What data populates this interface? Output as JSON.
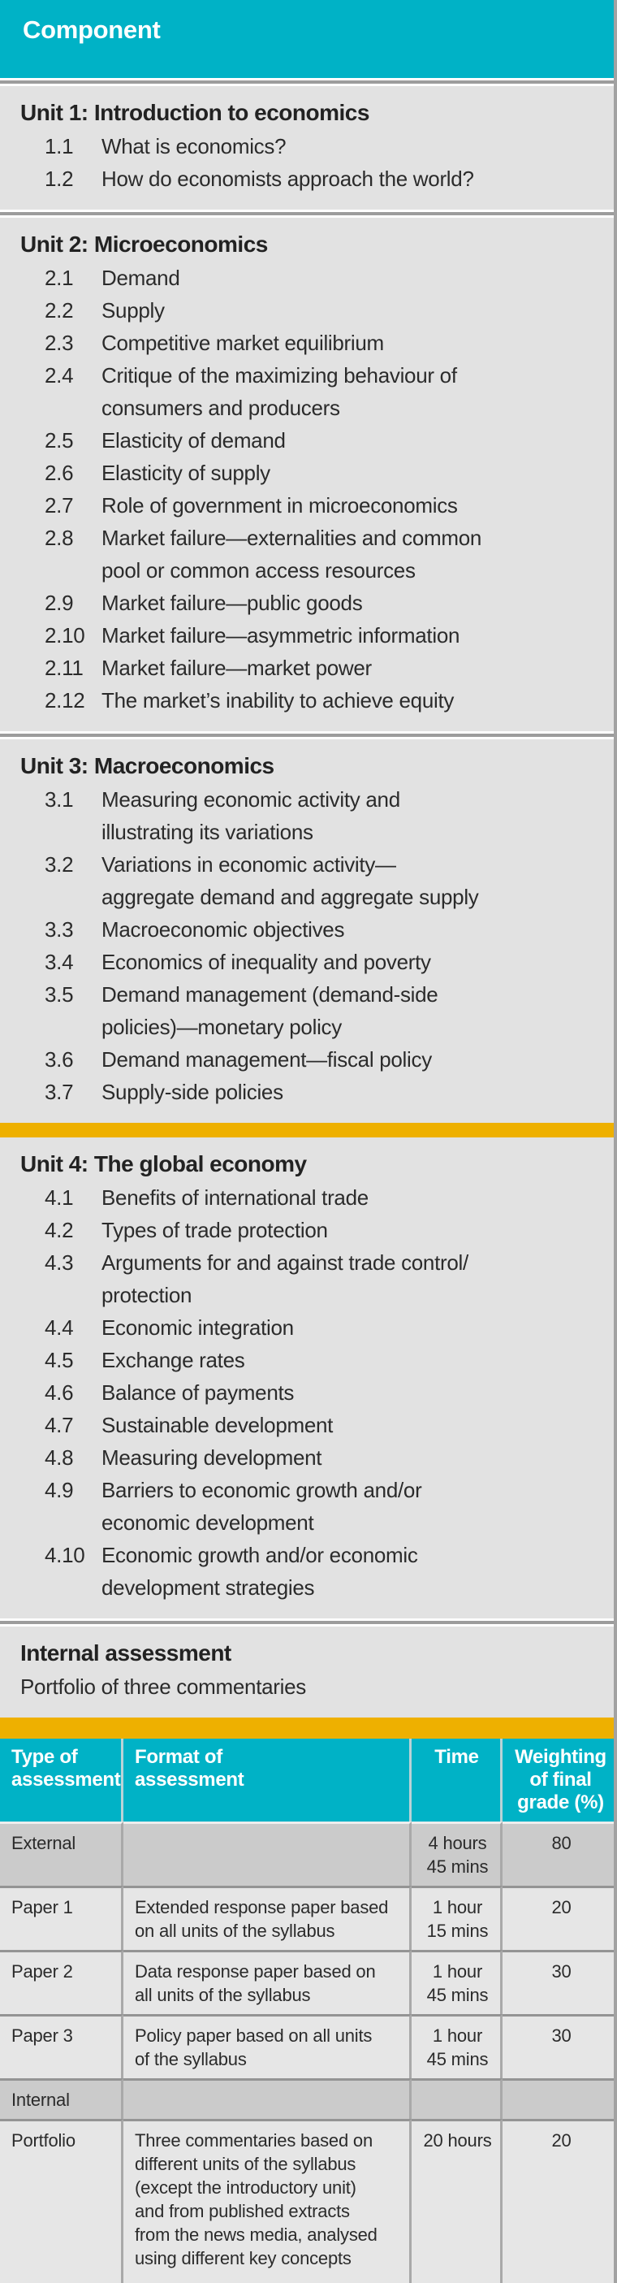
{
  "header": {
    "title": "Component"
  },
  "colors": {
    "teal": "#00b2c6",
    "accent_yellow": "#eeb000",
    "section_bg": "#e2e2e2",
    "shaded_row_bg": "#cbcbcb",
    "row_bg": "#e6e6e6",
    "text": "#2b2b2b"
  },
  "units": [
    {
      "heading": "Unit 1: Introduction to economics",
      "items": [
        {
          "num": "1.1",
          "text": "What is economics?"
        },
        {
          "num": "1.2",
          "text": "How do economists approach the world?"
        }
      ]
    },
    {
      "heading": "Unit 2: Microeconomics",
      "items": [
        {
          "num": "2.1",
          "text": "Demand"
        },
        {
          "num": "2.2",
          "text": "Supply"
        },
        {
          "num": "2.3",
          "text": "Competitive market equilibrium"
        },
        {
          "num": "2.4",
          "text": "Critique of the maximizing behaviour of\nconsumers and producers"
        },
        {
          "num": "2.5",
          "text": "Elasticity of demand"
        },
        {
          "num": "2.6",
          "text": "Elasticity of supply"
        },
        {
          "num": "2.7",
          "text": "Role of government in microeconomics"
        },
        {
          "num": "2.8",
          "text": "Market failure—externalities and common\npool or common access resources"
        },
        {
          "num": "2.9",
          "text": "Market failure—public goods"
        },
        {
          "num": "2.10",
          "text": "Market failure—asymmetric information"
        },
        {
          "num": "2.11",
          "text": "Market failure—market power"
        },
        {
          "num": "2.12",
          "text": "The market’s inability to achieve equity"
        }
      ]
    },
    {
      "heading": "Unit 3: Macroeconomics",
      "items": [
        {
          "num": "3.1",
          "text": "Measuring economic activity and\nillustrating its variations"
        },
        {
          "num": "3.2",
          "text": "Variations in economic activity—\naggregate demand and aggregate supply"
        },
        {
          "num": "3.3",
          "text": "Macroeconomic objectives"
        },
        {
          "num": "3.4",
          "text": "Economics of inequality and poverty"
        },
        {
          "num": "3.5",
          "text": "Demand management (demand-side\npolicies)—monetary policy"
        },
        {
          "num": "3.6",
          "text": "Demand management—fiscal policy"
        },
        {
          "num": "3.7",
          "text": "Supply-side policies"
        }
      ]
    },
    {
      "heading": "Unit 4: The global economy",
      "items": [
        {
          "num": "4.1",
          "text": "Benefits of international trade"
        },
        {
          "num": "4.2",
          "text": "Types of trade protection"
        },
        {
          "num": "4.3",
          "text": "Arguments for and against trade control/\nprotection"
        },
        {
          "num": "4.4",
          "text": "Economic integration"
        },
        {
          "num": "4.5",
          "text": "Exchange rates"
        },
        {
          "num": "4.6",
          "text": "Balance of payments"
        },
        {
          "num": "4.7",
          "text": "Sustainable development"
        },
        {
          "num": "4.8",
          "text": "Measuring development"
        },
        {
          "num": "4.9",
          "text": "Barriers to economic growth and/or\neconomic development"
        },
        {
          "num": "4.10",
          "text": "Economic growth and/or economic\ndevelopment strategies"
        }
      ]
    }
  ],
  "internal_assessment": {
    "heading": "Internal assessment",
    "subtitle": "Portfolio of three commentaries"
  },
  "assessment_table": {
    "headers": [
      "Type of\nassessment",
      "Format of\nassessment",
      "Time",
      "Weighting\nof final\ngrade (%)"
    ],
    "rows": [
      {
        "type": "External",
        "format": "",
        "time": "4 hours\n45 mins",
        "weighting": "80",
        "shaded": true
      },
      {
        "type": "Paper 1",
        "format": "Extended response paper based\non all units of the syllabus",
        "time": "1 hour\n15 mins",
        "weighting": "20",
        "shaded": false
      },
      {
        "type": "Paper 2",
        "format": "Data response paper based on\nall units of the syllabus",
        "time": "1 hour\n45 mins",
        "weighting": "30",
        "shaded": false
      },
      {
        "type": "Paper 3",
        "format": "Policy paper based on all units\nof the syllabus",
        "time": "1 hour\n45 mins",
        "weighting": "30",
        "shaded": false
      },
      {
        "type": "Internal",
        "format": "",
        "time": "",
        "weighting": "",
        "shaded": true
      },
      {
        "type": "Portfolio",
        "format": "Three commentaries based on\ndifferent units of the syllabus\n(except the introductory unit)\nand from published extracts\nfrom the news media, analysed\nusing different key concepts",
        "time": "20 hours",
        "weighting": "20",
        "shaded": false
      }
    ]
  }
}
